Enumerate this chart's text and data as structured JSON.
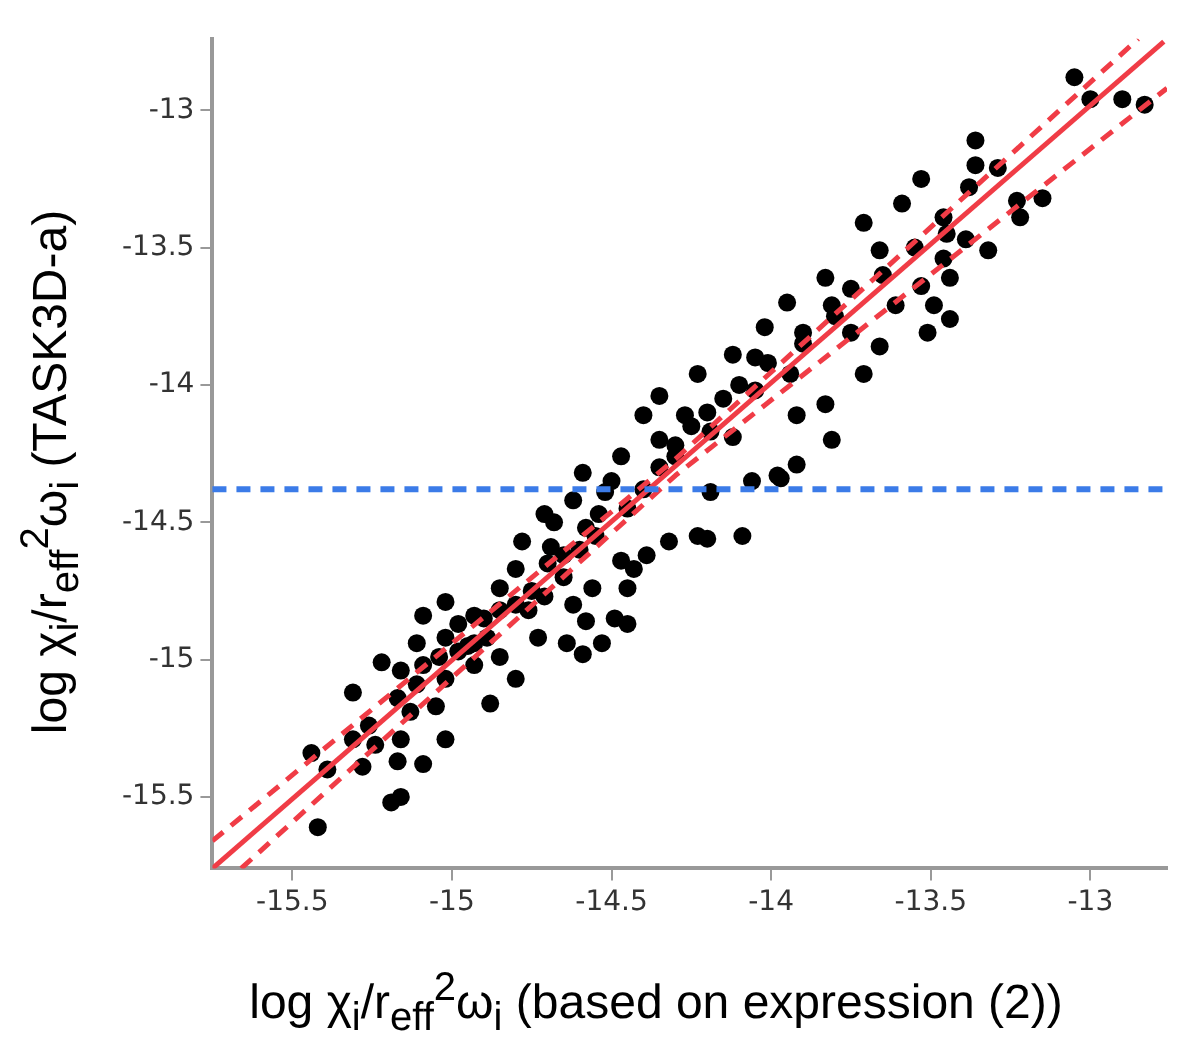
{
  "chart_data": {
    "type": "scatter",
    "xlabel": "log χ$_{i}$/r$_{eff}$$^{2}$ω$_{i}$ (based on expression (2))",
    "ylabel": "log χ$_{i}$/r$_{eff}$$^{2}$ω$_{i}$ (TASK3D-a)",
    "xlim": [
      -15.75,
      -12.76
    ],
    "ylim": [
      -15.76,
      -12.74
    ],
    "xticks": [
      -15.5,
      -15,
      -14.5,
      -14,
      -13.5,
      -13
    ],
    "yticks": [
      -15.5,
      -15,
      -14.5,
      -14,
      -13.5,
      -13
    ],
    "grid": false,
    "legend": false,
    "series": [
      {
        "color": "#000000",
        "marker": "circle",
        "x": [
          -13.05,
          -13.0,
          -12.9,
          -12.83,
          -13.36,
          -13.36,
          -13.29,
          -13.53,
          -13.38,
          -13.23,
          -13.15,
          -13.22,
          -13.59,
          -13.46,
          -13.71,
          -13.32,
          -13.39,
          -13.46,
          -13.53,
          -13.44,
          -13.49,
          -13.44,
          -13.51,
          -13.66,
          -13.61,
          -13.66,
          -13.71,
          -13.83,
          -13.81,
          -13.75,
          -13.95,
          -13.9,
          -14.02,
          -14.01,
          -14.12,
          -14.05,
          -13.94,
          -13.83,
          -13.92,
          -13.81,
          -13.92,
          -13.98,
          -14.06,
          -14.23,
          -14.35,
          -14.27,
          -14.4,
          -14.19,
          -14.12,
          -14.47,
          -14.3,
          -14.59,
          -14.19,
          -14.52,
          -13.97,
          -14.09,
          -14.23,
          -14.2,
          -14.32,
          -14.47,
          -14.39,
          -14.43,
          -14.45,
          -14.56,
          -14.62,
          -14.49,
          -14.45,
          -14.58,
          -14.53,
          -14.59,
          -14.64,
          -14.73,
          -14.8,
          -14.85,
          -14.88,
          -14.93,
          -15.09,
          -15.02,
          -14.98,
          -15.02,
          -15.02,
          -15.09,
          -15.05,
          -15.11,
          -15.22,
          -15.16,
          -15.31,
          -15.17,
          -15.13,
          -15.26,
          -15.31,
          -15.24,
          -15.16,
          -15.02,
          -15.09,
          -15.28,
          -15.17,
          -15.44,
          -15.39,
          -15.16,
          -15.19,
          -15.42,
          -14.85,
          -14.78,
          -14.93,
          -14.71,
          -14.76,
          -14.65,
          -14.58,
          -14.54,
          -14.62,
          -14.71,
          -14.69,
          -14.8,
          -14.85,
          -14.89,
          -14.93,
          -14.98,
          -15.04,
          -15.11,
          -14.45,
          -14.4,
          -14.35,
          -14.3,
          -14.25,
          -14.2,
          -14.15,
          -14.1,
          -14.05,
          -13.9,
          -13.8,
          -13.75,
          -13.65,
          -13.55,
          -13.45,
          -14.55,
          -14.6,
          -14.65,
          -14.7,
          -14.75,
          -14.8,
          -14.9,
          -14.95,
          -14.68,
          -14.5,
          -14.35
        ],
        "values": [
          -12.88,
          -12.96,
          -12.96,
          -12.98,
          -13.11,
          -13.2,
          -13.21,
          -13.25,
          -13.28,
          -13.33,
          -13.32,
          -13.39,
          -13.34,
          -13.39,
          -13.41,
          -13.51,
          -13.47,
          -13.54,
          -13.64,
          -13.61,
          -13.71,
          -13.76,
          -13.81,
          -13.51,
          -13.71,
          -13.86,
          -13.96,
          -13.61,
          -13.71,
          -13.81,
          -13.7,
          -13.81,
          -13.79,
          -13.92,
          -13.89,
          -14.02,
          -13.96,
          -14.07,
          -14.11,
          -14.2,
          -14.29,
          -14.33,
          -14.35,
          -13.96,
          -14.04,
          -14.11,
          -14.11,
          -14.17,
          -14.19,
          -14.26,
          -14.26,
          -14.32,
          -14.39,
          -14.39,
          -14.34,
          -14.55,
          -14.55,
          -14.56,
          -14.57,
          -14.64,
          -14.62,
          -14.67,
          -14.74,
          -14.74,
          -14.8,
          -14.85,
          -14.87,
          -14.86,
          -14.94,
          -14.98,
          -14.94,
          -14.92,
          -15.07,
          -14.99,
          -15.16,
          -15.02,
          -14.84,
          -14.79,
          -14.87,
          -14.92,
          -15.07,
          -15.02,
          -15.17,
          -15.09,
          -15.01,
          -15.04,
          -15.12,
          -15.14,
          -15.19,
          -15.24,
          -15.29,
          -15.31,
          -15.29,
          -15.29,
          -15.38,
          -15.39,
          -15.37,
          -15.34,
          -15.4,
          -15.5,
          -15.52,
          -15.61,
          -14.74,
          -14.57,
          -14.84,
          -14.77,
          -14.82,
          -14.62,
          -14.52,
          -14.47,
          -14.42,
          -14.47,
          -14.59,
          -14.67,
          -14.82,
          -14.92,
          -14.94,
          -14.97,
          -14.99,
          -14.94,
          -14.45,
          -14.38,
          -14.3,
          -14.22,
          -14.15,
          -14.1,
          -14.05,
          -14.0,
          -13.9,
          -13.85,
          -13.75,
          -13.65,
          -13.6,
          -13.5,
          -13.45,
          -14.55,
          -14.6,
          -14.7,
          -14.65,
          -14.75,
          -14.8,
          -14.85,
          -14.95,
          -14.5,
          -14.35,
          -14.2
        ]
      },
      {
        "type": "line",
        "color": "#f03c46",
        "marker": "none",
        "line_style": "solid",
        "x": [
          -15.75,
          -12.77
        ],
        "values": [
          -15.76,
          -12.75
        ]
      },
      {
        "type": "line",
        "color": "#f03c46",
        "marker": "none",
        "line_style": "dashed",
        "x": [
          -15.75,
          -14.3,
          -12.85
        ],
        "values": [
          -15.66,
          -14.27,
          -12.74
        ]
      },
      {
        "type": "line",
        "color": "#f03c46",
        "marker": "none",
        "line_style": "dashed",
        "x": [
          -15.66,
          -14.3,
          -12.76
        ],
        "values": [
          -15.76,
          -14.33,
          -12.92
        ]
      }
    ],
    "ref_lines": [
      {
        "axis": "y",
        "value": -14.38,
        "color": "#3b7be8",
        "line_style": "dashed"
      }
    ]
  }
}
